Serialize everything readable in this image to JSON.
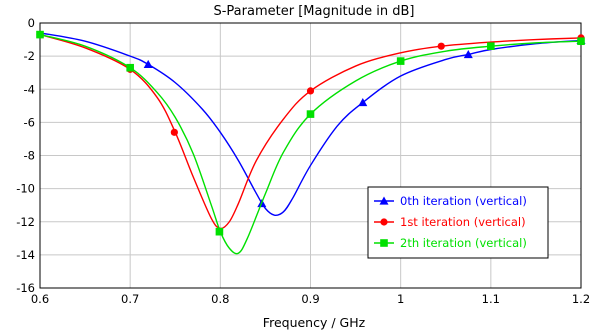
{
  "chart_data": {
    "type": "line",
    "title": "S-Parameter [Magnitude in dB]",
    "xlabel": "Frequency / GHz",
    "ylabel": "",
    "xlim": [
      0.6,
      1.2
    ],
    "ylim": [
      -16,
      0
    ],
    "xticks": [
      "0.6",
      "0.7",
      "0.8",
      "0.9",
      "1",
      "1.1",
      "1.2"
    ],
    "yticks": [
      "0",
      "-2",
      "-4",
      "-6",
      "-8",
      "-10",
      "-12",
      "-14",
      "-16"
    ],
    "xtick_values": [
      0.6,
      0.7,
      0.8,
      0.9,
      1.0,
      1.1,
      1.2
    ],
    "ytick_values": [
      0,
      -2,
      -4,
      -6,
      -8,
      -10,
      -12,
      -14,
      -16
    ],
    "grid": true,
    "legend_position": "bottom-right",
    "series": [
      {
        "name": "0th iteration (vertical)",
        "color": "#0000ff",
        "marker": "triangle",
        "x": [
          0.6,
          0.65,
          0.7,
          0.72,
          0.75,
          0.78,
          0.8,
          0.82,
          0.84,
          0.85,
          0.86,
          0.87,
          0.88,
          0.9,
          0.93,
          0.958,
          1.0,
          1.05,
          1.075,
          1.1,
          1.15,
          1.2
        ],
        "y": [
          -0.6,
          -1.1,
          -2.0,
          -2.5,
          -3.6,
          -5.2,
          -6.6,
          -8.3,
          -10.3,
          -11.2,
          -11.6,
          -11.4,
          -10.6,
          -8.6,
          -6.2,
          -4.8,
          -3.2,
          -2.2,
          -1.9,
          -1.6,
          -1.25,
          -1.05
        ],
        "marker_x": [
          0.72,
          0.846,
          0.958,
          1.075,
          1.2
        ],
        "marker_y": [
          -2.5,
          -10.9,
          -4.8,
          -1.9,
          -1.05
        ]
      },
      {
        "name": "1st iteration (vertical)",
        "color": "#ff0000",
        "marker": "circle",
        "x": [
          0.6,
          0.65,
          0.7,
          0.73,
          0.75,
          0.77,
          0.79,
          0.8,
          0.81,
          0.82,
          0.84,
          0.87,
          0.9,
          0.95,
          1.0,
          1.045,
          1.1,
          1.15,
          1.2
        ],
        "y": [
          -0.7,
          -1.5,
          -2.8,
          -4.5,
          -6.6,
          -9.3,
          -11.8,
          -12.4,
          -12.0,
          -10.9,
          -8.3,
          -5.8,
          -4.1,
          -2.6,
          -1.8,
          -1.4,
          -1.15,
          -1.0,
          -0.9
        ],
        "marker_x": [
          0.6,
          0.7,
          0.749,
          0.9,
          1.045,
          1.2
        ],
        "marker_y": [
          -0.7,
          -2.8,
          -6.6,
          -4.1,
          -1.4,
          -0.9
        ]
      },
      {
        "name": "2th iteration (vertical)",
        "color": "#00e000",
        "marker": "square",
        "x": [
          0.6,
          0.65,
          0.7,
          0.73,
          0.75,
          0.77,
          0.79,
          0.8,
          0.81,
          0.82,
          0.83,
          0.85,
          0.87,
          0.9,
          0.95,
          1.0,
          1.05,
          1.1,
          1.15,
          1.2
        ],
        "y": [
          -0.7,
          -1.4,
          -2.7,
          -4.2,
          -5.7,
          -7.9,
          -11.0,
          -12.6,
          -13.6,
          -13.9,
          -13.0,
          -10.3,
          -7.8,
          -5.5,
          -3.5,
          -2.3,
          -1.7,
          -1.4,
          -1.2,
          -1.1
        ],
        "marker_x": [
          0.6,
          0.7,
          0.799,
          0.9,
          1.0,
          1.1,
          1.2
        ],
        "marker_y": [
          -0.7,
          -2.7,
          -12.6,
          -5.5,
          -2.3,
          -1.4,
          -1.1
        ]
      }
    ]
  }
}
